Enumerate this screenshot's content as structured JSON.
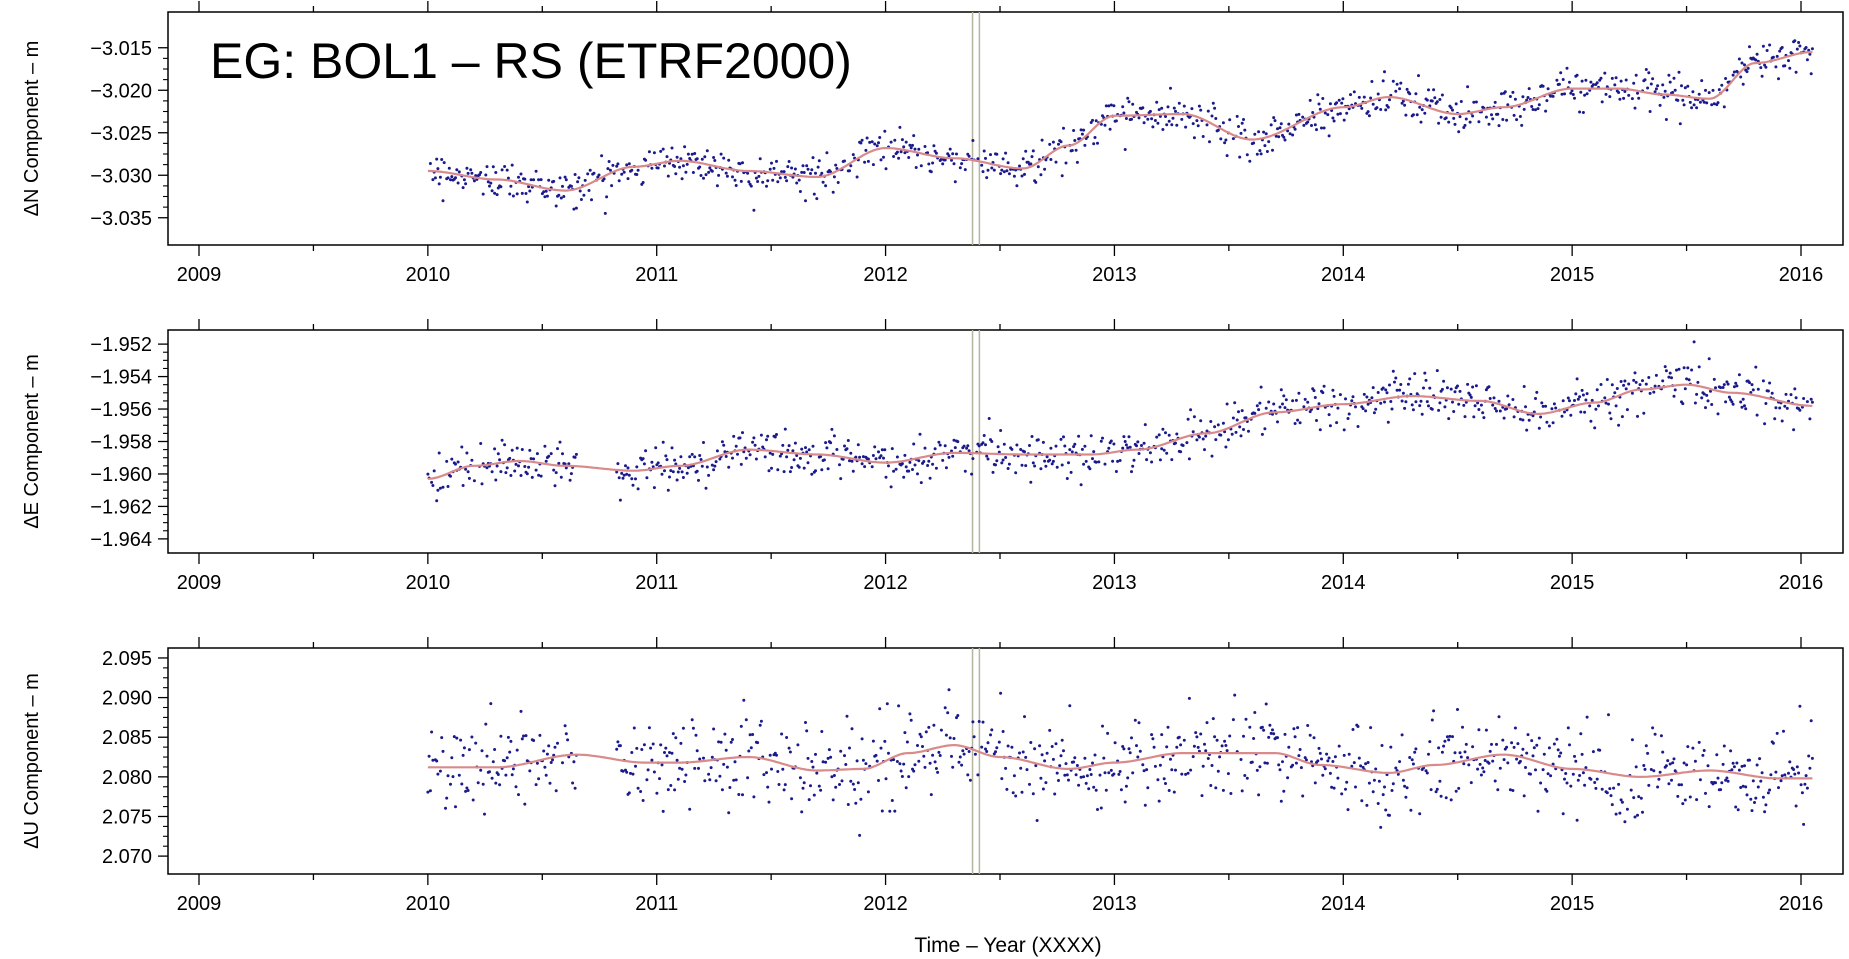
{
  "chart_data": {
    "type": "scatter",
    "title": "EG: BOL1 – RS (ETRF2000)",
    "xlabel": "Time – Year (XXXX)",
    "xlim": [
      2009,
      2016.05
    ],
    "x_ticks": [
      "2009",
      "2010",
      "2011",
      "2012",
      "2013",
      "2014",
      "2015",
      "2016"
    ],
    "event_lines": [
      2012.38,
      2012.41
    ],
    "grid": false,
    "colors": {
      "points": "#1a1a8c",
      "fit": "#d98a8a",
      "event_line": "#b5b5a0",
      "frame": "#000000"
    },
    "panels": [
      {
        "ylabel": "ΔN Component – m",
        "ylim": [
          -3.0375,
          -3.0115
        ],
        "y_ticks": [
          "-3.015",
          "-3.020",
          "-3.025",
          "-3.030",
          "-3.035"
        ],
        "noise": 0.0011,
        "fit_x": [
          2010.0,
          2010.3,
          2010.6,
          2010.9,
          2011.1,
          2011.4,
          2011.7,
          2012.0,
          2012.3,
          2012.6,
          2012.8,
          2013.0,
          2013.3,
          2013.6,
          2014.0,
          2014.2,
          2014.5,
          2014.7,
          2015.0,
          2015.2,
          2015.4,
          2015.6,
          2015.8,
          2016.05
        ],
        "fit_y": [
          -3.0295,
          -3.0305,
          -3.0318,
          -3.029,
          -3.0283,
          -3.0295,
          -3.0302,
          -3.0268,
          -3.028,
          -3.0292,
          -3.0265,
          -3.023,
          -3.0228,
          -3.0258,
          -3.022,
          -3.0208,
          -3.0228,
          -3.022,
          -3.0198,
          -3.0198,
          -3.0205,
          -3.021,
          -3.0168,
          -3.0155
        ],
        "gaps": []
      },
      {
        "ylabel": "ΔE Component – m",
        "ylim": [
          -1.9645,
          -1.9515
        ],
        "y_ticks": [
          "-1.952",
          "-1.954",
          "-1.956",
          "-1.958",
          "-1.960",
          "-1.962",
          "-1.964"
        ],
        "noise": 0.0007,
        "fit_x": [
          2010.0,
          2010.2,
          2010.4,
          2010.6,
          2010.9,
          2011.1,
          2011.4,
          2011.7,
          2012.0,
          2012.3,
          2012.6,
          2012.9,
          2013.1,
          2013.4,
          2013.7,
          2014.0,
          2014.3,
          2014.6,
          2014.85,
          2015.1,
          2015.3,
          2015.5,
          2015.7,
          2016.05
        ],
        "fit_y": [
          -1.9603,
          -1.9595,
          -1.9592,
          -1.9595,
          -1.9598,
          -1.9595,
          -1.9585,
          -1.9588,
          -1.9593,
          -1.9587,
          -1.9588,
          -1.9588,
          -1.9585,
          -1.9575,
          -1.9562,
          -1.9557,
          -1.9552,
          -1.9555,
          -1.9563,
          -1.9556,
          -1.9548,
          -1.9545,
          -1.955,
          -1.9558
        ],
        "gaps": [
          [
            2010.65,
            2010.82
          ]
        ]
      },
      {
        "ylabel": "ΔU Component – m",
        "ylim": [
          2.0685,
          2.0955
        ],
        "y_ticks": [
          "2.095",
          "2.090",
          "2.085",
          "2.080",
          "2.075",
          "2.070"
        ],
        "noise": 0.0028,
        "fit_x": [
          2010.0,
          2010.3,
          2010.65,
          2010.95,
          2011.1,
          2011.4,
          2011.7,
          2011.9,
          2012.1,
          2012.3,
          2012.5,
          2012.8,
          2013.0,
          2013.3,
          2013.7,
          2013.9,
          2014.2,
          2014.4,
          2014.7,
          2015.0,
          2015.3,
          2015.6,
          2015.9,
          2016.05
        ],
        "fit_y": [
          2.0812,
          2.0812,
          2.0828,
          2.0818,
          2.0818,
          2.0825,
          2.0808,
          2.081,
          2.083,
          2.084,
          2.0825,
          2.081,
          2.0818,
          2.083,
          2.083,
          2.0815,
          2.0805,
          2.0815,
          2.0828,
          2.081,
          2.08,
          2.0808,
          2.0798,
          2.0798
        ],
        "gaps": [
          [
            2010.65,
            2010.82
          ]
        ]
      }
    ]
  }
}
